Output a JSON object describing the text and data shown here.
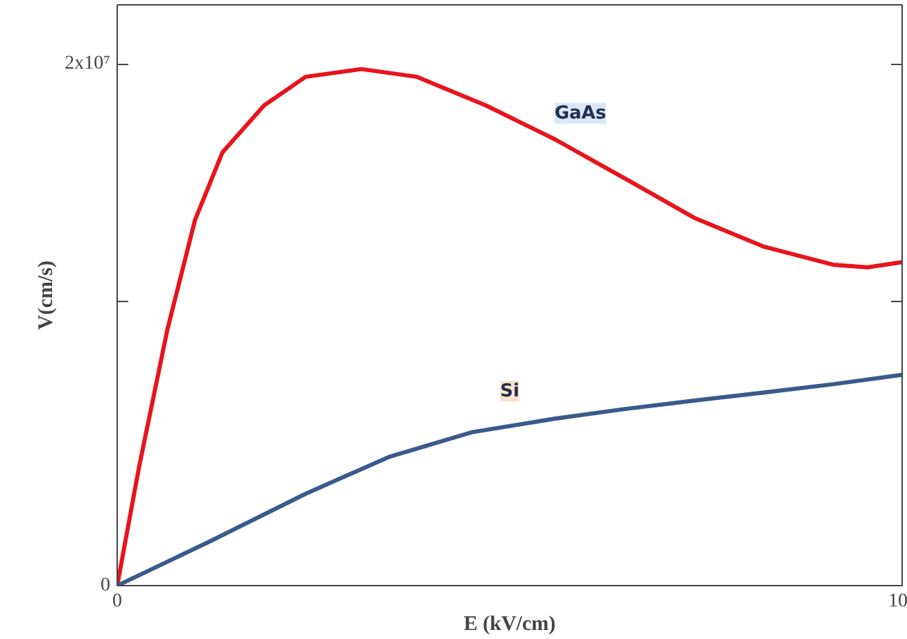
{
  "chart_data": {
    "type": "line",
    "xlabel": "E (kV/cm)",
    "ylabel": "V(cm/s)",
    "xlim": [
      0,
      10
    ],
    "xticks": [
      {
        "value": 0,
        "label": "0"
      },
      {
        "value": 10,
        "label": "10"
      }
    ],
    "ylim": [
      0,
      22260000
    ],
    "yticks": [
      {
        "value": 0,
        "label": "0"
      },
      {
        "value": 10900000,
        "label": null
      },
      {
        "value": 20000000,
        "label": "2x10⁷"
      }
    ],
    "line_style": "solid",
    "series": [
      {
        "color": "#e8141c",
        "x": [
          0,
          0.28,
          0.64,
          0.99,
          1.34,
          1.87,
          2.4,
          3.11,
          3.82,
          4.7,
          5.58,
          6.47,
          7.35,
          8.23,
          9.12,
          9.56,
          10
        ],
        "values": [
          0,
          4570000,
          9820000,
          14000000,
          16600000,
          18400000,
          19500000,
          19800000,
          19500000,
          18400000,
          17100000,
          15600000,
          14100000,
          13000000,
          12300000,
          12200000,
          12400000
        ]
      },
      {
        "color": "#3a5a8c",
        "x": [
          0,
          1.17,
          2.4,
          3.46,
          4.52,
          5.58,
          6.47,
          7.35,
          8.23,
          9.12,
          10
        ],
        "values": [
          0,
          1680000,
          3520000,
          4930000,
          5880000,
          6400000,
          6770000,
          7090000,
          7400000,
          7720000,
          8080000
        ]
      }
    ],
    "annotations": [
      {
        "text": "GaAs",
        "x": 5.9,
        "y": 18100000
      },
      {
        "text": "Si",
        "x": 5.0,
        "y": 7450000
      }
    ]
  }
}
